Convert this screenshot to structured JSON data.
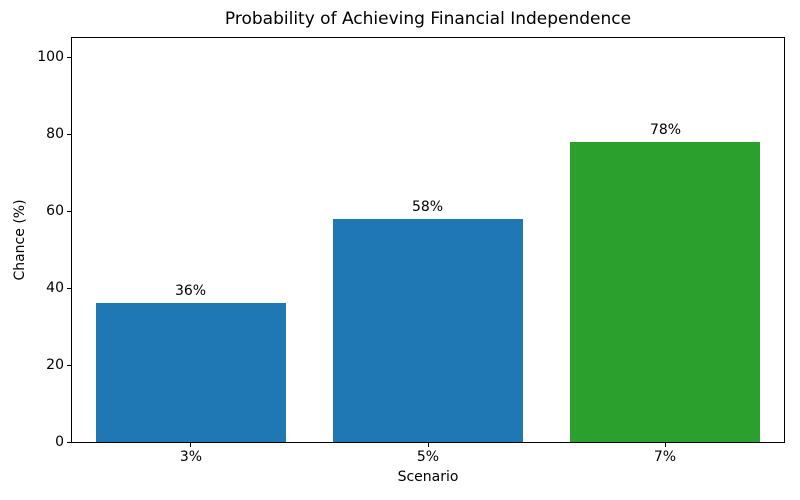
{
  "chart_data": {
    "type": "bar",
    "title": "Probability of Achieving Financial Independence",
    "xlabel": "Scenario",
    "ylabel": "Chance (%)",
    "categories": [
      "3%",
      "5%",
      "7%"
    ],
    "values": [
      36,
      58,
      78
    ],
    "bar_labels": [
      "36%",
      "58%",
      "78%"
    ],
    "bar_colors": [
      "#1f77b4",
      "#1f77b4",
      "#2ca02c"
    ],
    "yticks": [
      0,
      20,
      40,
      60,
      80,
      100
    ],
    "ylim": [
      0,
      105
    ],
    "grid": false,
    "legend_position": "none",
    "bar_width_fraction": 0.8
  },
  "colors": {
    "bar_blue": "#1f77b4",
    "bar_green": "#2ca02c",
    "axis": "#000000",
    "text": "#000000",
    "background": "#ffffff"
  }
}
